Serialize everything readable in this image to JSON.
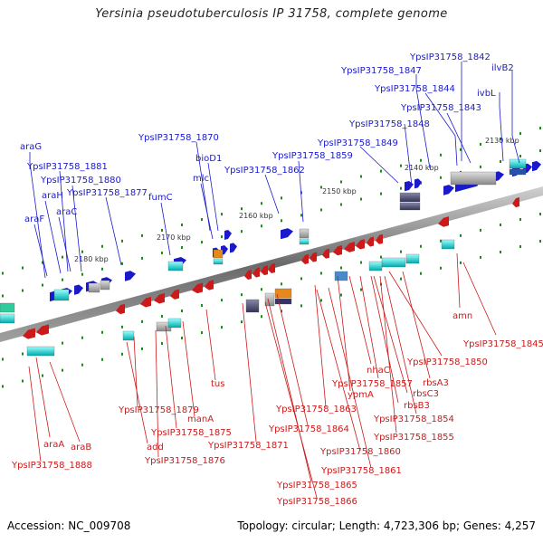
{
  "title": "Yersinia pseudotuberculosis IP 31758, complete genome",
  "footer": {
    "accession": "Accession: NC_009708",
    "summary": "Topology: circular; Length: 4,723,306 bp; Genes: 4,257"
  },
  "colors": {
    "forward_gene": "#1a1acc",
    "reverse_gene": "#cc1a1a",
    "backbone": "#808080",
    "tick": "#1a8a1a"
  },
  "kbp_ticks": [
    "2130 kbp",
    "2140 kbp",
    "2150 kbp",
    "2160 kbp",
    "2170 kbp",
    "2180 kbp"
  ],
  "top_labels": [
    "YpsIP31758_1842",
    "ilvB2",
    "YpsIP31758_1847",
    "YpsIP31758_1844",
    "ivbL",
    "YpsIP31758_1843",
    "YpsIP31758_1848",
    "YpsIP31758_1870",
    "YpsIP31758_1849",
    "bioD1",
    "YpsIP31758_1859",
    "araG",
    "mlc",
    "YpsIP31758_1862",
    "YpsIP31758_1881",
    "YpsIP31758_1880",
    "araH",
    "YpsIP31758_1877",
    "fumC",
    "araF",
    "araC"
  ],
  "bottom_labels": [
    "amn",
    "YpsIP31758_1845",
    "YpsIP31758_1850",
    "nhaC",
    "rbsA3",
    "YpsIP31758_1857",
    "ypmA",
    "rbsC3",
    "YpsIP31758_1863",
    "rbsB3",
    "YpsIP31758_1854",
    "tus",
    "YpsIP31758_1879",
    "manA",
    "YpsIP31758_1864",
    "YpsIP31758_1855",
    "YpsIP31758_1875",
    "YpsIP31758_1871",
    "add",
    "araA",
    "araB",
    "YpsIP31758_1860",
    "YpsIP31758_1876",
    "YpsIP31758_1888",
    "YpsIP31758_1861",
    "YpsIP31758_1865",
    "YpsIP31758_1866"
  ]
}
